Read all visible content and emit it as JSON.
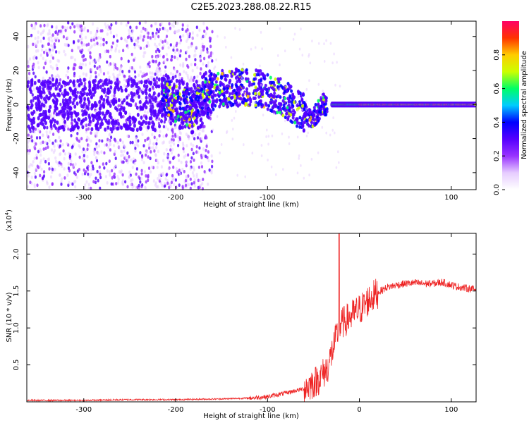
{
  "title": "C2E5.2023.288.08.22.R15",
  "chart_data": [
    {
      "type": "heatmap",
      "xlabel": "Height of straight line (km)",
      "ylabel": "Frequency (Hz)",
      "xlim": [
        -362,
        127
      ],
      "ylim": [
        -50,
        49
      ],
      "xticks": [
        -300,
        -200,
        -100,
        0,
        100
      ],
      "xtick_labels": [
        "-300",
        "-200",
        "-100",
        "0",
        "100"
      ],
      "yticks": [
        -40,
        -20,
        0,
        20,
        40
      ],
      "ytick_labels": [
        "-40",
        "-20",
        "0",
        "20",
        "40"
      ],
      "colorbar": {
        "label": "Normalized spectral amplitude",
        "range": [
          0,
          1
        ],
        "ticks": [
          0.0,
          0.2,
          0.4,
          0.6,
          0.8
        ],
        "tick_labels": [
          "0.0",
          "0.2",
          "0.4",
          "0.6",
          "0.8"
        ],
        "colormap": [
          "#ffffff",
          "#e6ccff",
          "#9933ff",
          "#5500ff",
          "#0000ff",
          "#00ccff",
          "#00ff66",
          "#ccff00",
          "#ffcc00",
          "#ff3300",
          "#ff0066"
        ]
      },
      "ridge": [
        [
          -215,
          5
        ],
        [
          -200,
          0
        ],
        [
          -180,
          -2
        ],
        [
          -160,
          8
        ],
        [
          -140,
          10
        ],
        [
          -120,
          10
        ],
        [
          -100,
          8
        ],
        [
          -80,
          3
        ],
        [
          -60,
          -5
        ],
        [
          -50,
          -8
        ],
        [
          -40,
          0
        ],
        [
          -20,
          0
        ],
        [
          0,
          0
        ],
        [
          127,
          0
        ]
      ]
    },
    {
      "type": "line",
      "xlabel": "Height of straight line (km)",
      "ylabel": "SNR (10 * v/v)",
      "ylabel_scale": "(x10",
      "ylabel_scale_exp": "4",
      "ylabel_scale_close": ")",
      "xlim": [
        -362,
        127
      ],
      "ylim": [
        0.0,
        2.28
      ],
      "xticks": [
        -300,
        -200,
        -100,
        0,
        100
      ],
      "xtick_labels": [
        "-300",
        "-200",
        "-100",
        "0",
        "100"
      ],
      "yticks": [
        0.5,
        1.0,
        1.5,
        2.0
      ],
      "ytick_labels": [
        "0.5",
        "1.0",
        "1.5",
        "2.0"
      ],
      "color": "#ee2222",
      "x": [
        -362,
        -300,
        -250,
        -200,
        -150,
        -120,
        -100,
        -80,
        -60,
        -45,
        -35,
        -28,
        -23,
        -20,
        -15,
        -10,
        -5,
        0,
        5,
        10,
        20,
        30,
        40,
        50,
        60,
        70,
        80,
        90,
        100,
        110,
        127
      ],
      "y": [
        0.02,
        0.02,
        0.03,
        0.03,
        0.04,
        0.05,
        0.07,
        0.12,
        0.18,
        0.3,
        0.45,
        0.75,
        0.95,
        1.05,
        1.1,
        1.15,
        1.2,
        1.25,
        1.3,
        1.38,
        1.48,
        1.55,
        1.58,
        1.6,
        1.61,
        1.6,
        1.6,
        1.62,
        1.58,
        1.55,
        1.52
      ]
    }
  ]
}
